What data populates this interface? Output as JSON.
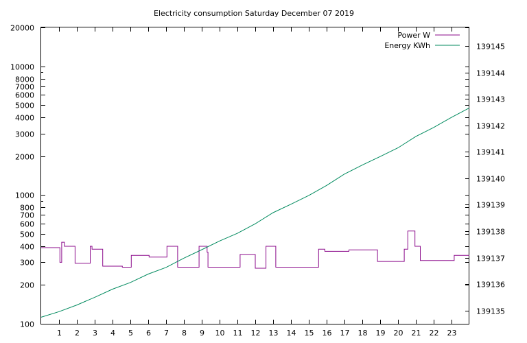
{
  "chart_data": {
    "type": "line",
    "title": "Electricity consumption Saturday December 07 2019",
    "xlabel": "",
    "ylabel": "",
    "y2label": "",
    "grid": false,
    "legend_position": "top-right",
    "x_range": [
      0,
      24
    ],
    "x_ticks": [
      "1",
      "2",
      "3",
      "4",
      "5",
      "6",
      "7",
      "8",
      "9",
      "10",
      "11",
      "12",
      "13",
      "14",
      "15",
      "16",
      "17",
      "18",
      "19",
      "20",
      "21",
      "22",
      "23"
    ],
    "y_scale": "log",
    "y_range": [
      100,
      20000
    ],
    "y_ticks": [
      "100",
      "200",
      "300",
      "400",
      "500",
      "600",
      "700",
      "800",
      "1000",
      "2000",
      "3000",
      "4000",
      "5000",
      "6000",
      "7000",
      "8000",
      "10000",
      "20000"
    ],
    "y2_range": [
      139134.5,
      139145.7
    ],
    "y2_ticks": [
      "139135",
      "139136",
      "139137",
      "139138",
      "139139",
      "139140",
      "139141",
      "139142",
      "139143",
      "139144",
      "139145"
    ],
    "series": [
      {
        "name": "Power W",
        "axis": "left",
        "color": "#8b0a8b",
        "step": true,
        "points": [
          [
            0,
            390
          ],
          [
            1.0,
            390
          ],
          [
            1.05,
            300
          ],
          [
            1.15,
            430
          ],
          [
            1.3,
            400
          ],
          [
            1.85,
            400
          ],
          [
            1.9,
            295
          ],
          [
            2.7,
            295
          ],
          [
            2.75,
            400
          ],
          [
            2.85,
            380
          ],
          [
            3.4,
            380
          ],
          [
            3.45,
            280
          ],
          [
            4.5,
            280
          ],
          [
            4.55,
            275
          ],
          [
            5.0,
            275
          ],
          [
            5.05,
            340
          ],
          [
            6.0,
            340
          ],
          [
            6.05,
            330
          ],
          [
            7.0,
            330
          ],
          [
            7.05,
            400
          ],
          [
            7.6,
            400
          ],
          [
            7.65,
            275
          ],
          [
            8.8,
            275
          ],
          [
            8.85,
            400
          ],
          [
            9.2,
            400
          ],
          [
            9.3,
            360
          ],
          [
            9.35,
            275
          ],
          [
            11.1,
            275
          ],
          [
            11.15,
            345
          ],
          [
            11.95,
            345
          ],
          [
            12.0,
            270
          ],
          [
            12.55,
            270
          ],
          [
            12.6,
            400
          ],
          [
            13.1,
            400
          ],
          [
            13.15,
            275
          ],
          [
            15.5,
            275
          ],
          [
            15.55,
            380
          ],
          [
            15.85,
            380
          ],
          [
            15.9,
            365
          ],
          [
            17.2,
            365
          ],
          [
            17.25,
            375
          ],
          [
            18.8,
            375
          ],
          [
            18.85,
            305
          ],
          [
            20.3,
            305
          ],
          [
            20.35,
            380
          ],
          [
            20.5,
            380
          ],
          [
            20.55,
            525
          ],
          [
            20.9,
            525
          ],
          [
            20.95,
            400
          ],
          [
            21.2,
            400
          ],
          [
            21.25,
            310
          ],
          [
            23.1,
            310
          ],
          [
            23.15,
            340
          ],
          [
            24,
            340
          ]
        ]
      },
      {
        "name": "Energy KWh",
        "axis": "right",
        "color": "#008a5e",
        "step": false,
        "points": [
          [
            0,
            139134.75
          ],
          [
            1,
            139134.96
          ],
          [
            2,
            139135.21
          ],
          [
            3,
            139135.5
          ],
          [
            4,
            139135.81
          ],
          [
            5,
            139136.06
          ],
          [
            6,
            139136.38
          ],
          [
            7,
            139136.63
          ],
          [
            8,
            139136.98
          ],
          [
            9,
            139137.3
          ],
          [
            10,
            139137.63
          ],
          [
            11,
            139137.92
          ],
          [
            12,
            139138.28
          ],
          [
            13,
            139138.7
          ],
          [
            14,
            139139.02
          ],
          [
            15,
            139139.35
          ],
          [
            16,
            139139.73
          ],
          [
            17,
            139140.16
          ],
          [
            18,
            139140.5
          ],
          [
            19,
            139140.82
          ],
          [
            20,
            139141.15
          ],
          [
            21,
            139141.58
          ],
          [
            22,
            139141.92
          ],
          [
            23,
            139142.3
          ],
          [
            24,
            139142.66
          ]
        ]
      }
    ]
  }
}
